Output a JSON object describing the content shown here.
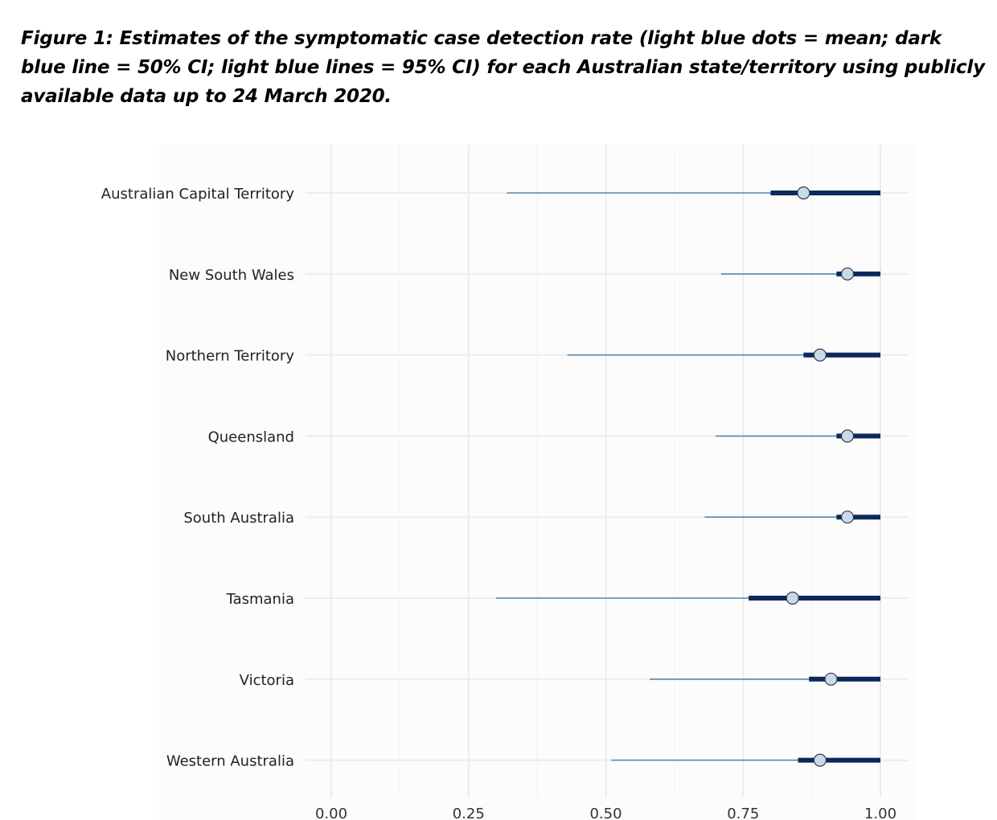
{
  "figure": {
    "caption": "Figure 1: Estimates of the symptomatic case detection rate (light blue dots = mean; dark blue line = 50% CI; light blue lines = 95% CI) for each Australian state/territory using publicly available data up to 24 March 2020."
  },
  "chart_data": {
    "type": "forest",
    "title": "",
    "xlabel": "",
    "ylabel": "",
    "xlim": [
      0.0,
      1.0
    ],
    "x_ticks": [
      "0.00",
      "0.25",
      "0.50",
      "0.75",
      "1.00"
    ],
    "grid": true,
    "legend": "none",
    "colors": {
      "mean_dot": "#c9d9e8",
      "ci50": "#0b2a5b",
      "ci95": "#5a87ad",
      "grid": "#ececec"
    },
    "categories": [
      "Australian Capital Territory",
      "New South Wales",
      "Northern Territory",
      "Queensland",
      "South Australia",
      "Tasmania",
      "Victoria",
      "Western Australia"
    ],
    "series": [
      {
        "category": "Australian Capital Territory",
        "mean": 0.86,
        "ci50": [
          0.8,
          1.0
        ],
        "ci95": [
          0.32,
          1.0
        ]
      },
      {
        "category": "New South Wales",
        "mean": 0.94,
        "ci50": [
          0.92,
          1.0
        ],
        "ci95": [
          0.71,
          1.0
        ]
      },
      {
        "category": "Northern Territory",
        "mean": 0.89,
        "ci50": [
          0.86,
          1.0
        ],
        "ci95": [
          0.43,
          1.0
        ]
      },
      {
        "category": "Queensland",
        "mean": 0.94,
        "ci50": [
          0.92,
          1.0
        ],
        "ci95": [
          0.7,
          1.0
        ]
      },
      {
        "category": "South Australia",
        "mean": 0.94,
        "ci50": [
          0.92,
          1.0
        ],
        "ci95": [
          0.68,
          1.0
        ]
      },
      {
        "category": "Tasmania",
        "mean": 0.84,
        "ci50": [
          0.76,
          1.0
        ],
        "ci95": [
          0.3,
          1.0
        ]
      },
      {
        "category": "Victoria",
        "mean": 0.91,
        "ci50": [
          0.87,
          1.0
        ],
        "ci95": [
          0.58,
          1.0
        ]
      },
      {
        "category": "Western Australia",
        "mean": 0.89,
        "ci50": [
          0.85,
          1.0
        ],
        "ci95": [
          0.51,
          1.0
        ]
      }
    ]
  }
}
